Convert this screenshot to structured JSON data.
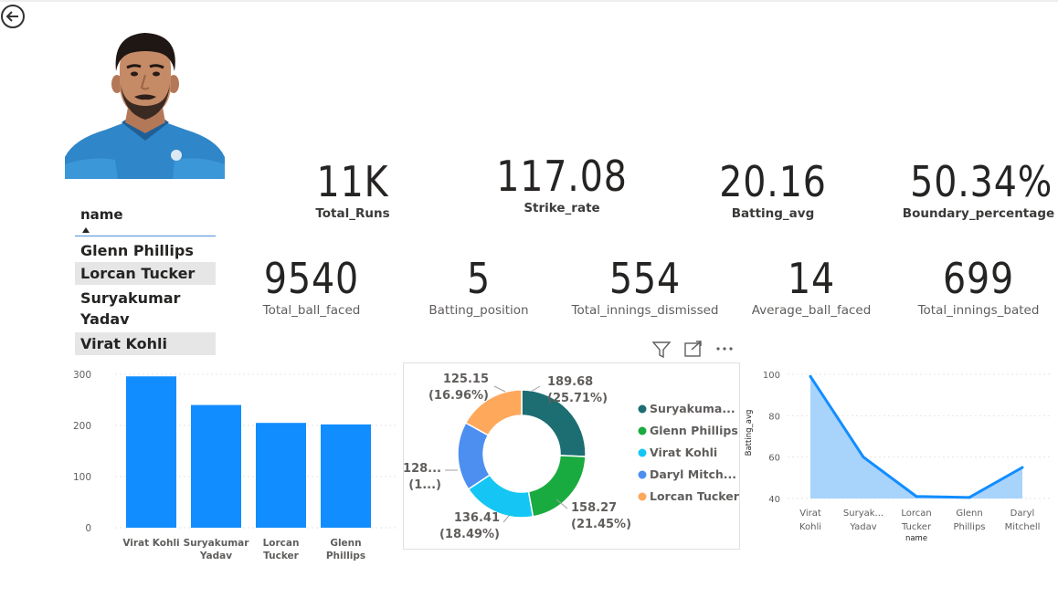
{
  "slicer": {
    "header": "name",
    "items": [
      {
        "label": "Glenn Phillips",
        "selected": false
      },
      {
        "label": "Lorcan Tucker",
        "selected": true
      },
      {
        "label": "Suryakumar Yadav",
        "selected": false
      },
      {
        "label": "Virat Kohli",
        "selected": true
      }
    ]
  },
  "kpis": [
    {
      "value": "11K",
      "label": "Total_Runs"
    },
    {
      "value": "117.08",
      "label": "Strike_rate"
    },
    {
      "value": "20.16",
      "label": "Batting_avg"
    },
    {
      "value": "50.34%",
      "label": "Boundary_percentage"
    },
    {
      "value": "9540",
      "label": "Total_ball_faced"
    },
    {
      "value": "5",
      "label": "Batting_position"
    },
    {
      "value": "554",
      "label": "Total_innings_dismissed"
    },
    {
      "value": "14",
      "label": "Average_ball_faced"
    },
    {
      "value": "699",
      "label": "Total_innings_bated"
    }
  ],
  "icons": {
    "back": "back-arrow-icon",
    "filter": "filter-icon",
    "focus": "focus-mode-icon",
    "more": "more-options-icon"
  },
  "chart_data": [
    {
      "type": "bar",
      "title": "",
      "xlabel": "",
      "ylabel": "",
      "categories": [
        "Virat Kohli",
        "Suryakumar Yadav",
        "Lorcan Tucker",
        "Glenn Phillips"
      ],
      "values": [
        296,
        240,
        205,
        202
      ],
      "ylim": [
        0,
        300
      ],
      "yticks": [
        0,
        100,
        200,
        300
      ],
      "color": "#118dff",
      "grid": true
    },
    {
      "type": "pie",
      "variant": "donut",
      "title": "",
      "slices": [
        {
          "name": "Suryakuma...",
          "value": 189.68,
          "label": "189.68",
          "pct": "(25.71%)",
          "color": "#1c6e72"
        },
        {
          "name": "Glenn Phillips",
          "value": 158.27,
          "label": "158.27",
          "pct": "(21.45%)",
          "color": "#1aab40"
        },
        {
          "name": "Virat Kohli",
          "value": 136.41,
          "label": "136.41",
          "pct": "(18.49%)",
          "color": "#15c6f4"
        },
        {
          "name": "Daryl Mitch...",
          "value": 128.2,
          "label": "128...",
          "pct": "(1...)",
          "color": "#4c8ff0"
        },
        {
          "name": "Lorcan Tucker",
          "value": 125.15,
          "label": "125.15",
          "pct": "(16.96%)",
          "color": "#fea85c"
        }
      ],
      "legend_position": "right"
    },
    {
      "type": "area",
      "title": "",
      "xlabel": "name",
      "ylabel": "Batting_avg",
      "categories": [
        "Virat Kohli",
        "Suryak... Yadav",
        "Lorcan Tucker",
        "Glenn Phillips",
        "Daryl Mitchell"
      ],
      "values": [
        99,
        60,
        41,
        40.5,
        55
      ],
      "ylim": [
        40,
        100
      ],
      "yticks": [
        40,
        60,
        80,
        100
      ],
      "color": "#118dff",
      "fill": "#a8d3fb"
    }
  ]
}
